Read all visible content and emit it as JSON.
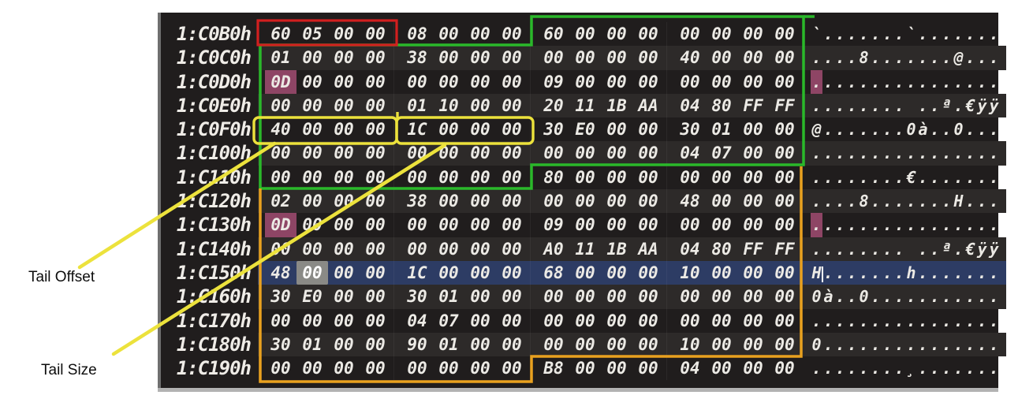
{
  "labels": {
    "tail_offset": "Tail Offset",
    "tail_size": "Tail Size"
  },
  "colors": {
    "red_box": "#d21f1f",
    "green_box": "#2ab82a",
    "yellow_box": "#ece23c",
    "orange_box": "#e9a11f",
    "pink_highlight": "#8e4565",
    "selection_blue": "#2d3c64",
    "cursor_grey": "#8a8a86",
    "panel_background": "#201d1d",
    "stripe_background": "#2d2a29"
  },
  "hex_view": {
    "rows": [
      {
        "addr": "1:C0B0h",
        "bytes": [
          "60",
          "05",
          "00",
          "00",
          "08",
          "00",
          "00",
          "00",
          "60",
          "00",
          "00",
          "00",
          "00",
          "00",
          "00",
          "00"
        ],
        "ascii": "`.......`......."
      },
      {
        "addr": "1:C0C0h",
        "bytes": [
          "01",
          "00",
          "00",
          "00",
          "38",
          "00",
          "00",
          "00",
          "00",
          "00",
          "00",
          "00",
          "40",
          "00",
          "00",
          "00"
        ],
        "ascii": "....8.......@..."
      },
      {
        "addr": "1:C0D0h",
        "bytes": [
          "0D",
          "00",
          "00",
          "00",
          "00",
          "00",
          "00",
          "00",
          "09",
          "00",
          "00",
          "00",
          "00",
          "00",
          "00",
          "00"
        ],
        "ascii": "................",
        "pink_byte": 0,
        "pink_ascii": 0
      },
      {
        "addr": "1:C0E0h",
        "bytes": [
          "00",
          "00",
          "00",
          "00",
          "01",
          "10",
          "00",
          "00",
          "20",
          "11",
          "1B",
          "AA",
          "04",
          "80",
          "FF",
          "FF"
        ],
        "ascii": "........ ..ª.€ÿÿ"
      },
      {
        "addr": "1:C0F0h",
        "bytes": [
          "40",
          "00",
          "00",
          "00",
          "1C",
          "00",
          "00",
          "00",
          "30",
          "E0",
          "00",
          "00",
          "30",
          "01",
          "00",
          "00"
        ],
        "ascii": "@.......0à..0..."
      },
      {
        "addr": "1:C100h",
        "bytes": [
          "00",
          "00",
          "00",
          "00",
          "00",
          "00",
          "00",
          "00",
          "00",
          "00",
          "00",
          "00",
          "04",
          "07",
          "00",
          "00"
        ],
        "ascii": "................"
      },
      {
        "addr": "1:C110h",
        "bytes": [
          "00",
          "00",
          "00",
          "00",
          "00",
          "00",
          "00",
          "00",
          "80",
          "00",
          "00",
          "00",
          "00",
          "00",
          "00",
          "00"
        ],
        "ascii": "........€......."
      },
      {
        "addr": "1:C120h",
        "bytes": [
          "02",
          "00",
          "00",
          "00",
          "38",
          "00",
          "00",
          "00",
          "00",
          "00",
          "00",
          "00",
          "48",
          "00",
          "00",
          "00"
        ],
        "ascii": "....8.......H..."
      },
      {
        "addr": "1:C130h",
        "bytes": [
          "0D",
          "00",
          "00",
          "00",
          "00",
          "00",
          "00",
          "00",
          "09",
          "00",
          "00",
          "00",
          "00",
          "00",
          "00",
          "00"
        ],
        "ascii": "................",
        "pink_byte": 0,
        "pink_ascii": 0
      },
      {
        "addr": "1:C140h",
        "bytes": [
          "00",
          "00",
          "00",
          "00",
          "00",
          "00",
          "00",
          "00",
          "A0",
          "11",
          "1B",
          "AA",
          "04",
          "80",
          "FF",
          "FF"
        ],
        "ascii": "........ ..ª.€ÿÿ"
      },
      {
        "addr": "1:C150h",
        "bytes": [
          "48",
          "00",
          "00",
          "00",
          "1C",
          "00",
          "00",
          "00",
          "68",
          "00",
          "00",
          "00",
          "10",
          "00",
          "00",
          "00"
        ],
        "ascii": "H.......h.......",
        "selected": true,
        "cursor_byte": 1,
        "caret_after": 0
      },
      {
        "addr": "1:C160h",
        "bytes": [
          "30",
          "E0",
          "00",
          "00",
          "30",
          "01",
          "00",
          "00",
          "00",
          "00",
          "00",
          "00",
          "00",
          "00",
          "00",
          "00"
        ],
        "ascii": "0à..0..........."
      },
      {
        "addr": "1:C170h",
        "bytes": [
          "00",
          "00",
          "00",
          "00",
          "04",
          "07",
          "00",
          "00",
          "00",
          "00",
          "00",
          "00",
          "00",
          "00",
          "00",
          "00"
        ],
        "ascii": "................"
      },
      {
        "addr": "1:C180h",
        "bytes": [
          "30",
          "01",
          "00",
          "00",
          "90",
          "01",
          "00",
          "00",
          "00",
          "00",
          "00",
          "00",
          "10",
          "00",
          "00",
          "00"
        ],
        "ascii": "0..............."
      },
      {
        "addr": "1:C190h",
        "bytes": [
          "00",
          "00",
          "00",
          "00",
          "00",
          "00",
          "00",
          "00",
          "B8",
          "00",
          "00",
          "00",
          "04",
          "00",
          "00",
          "00"
        ],
        "ascii": "........¸......."
      }
    ]
  }
}
